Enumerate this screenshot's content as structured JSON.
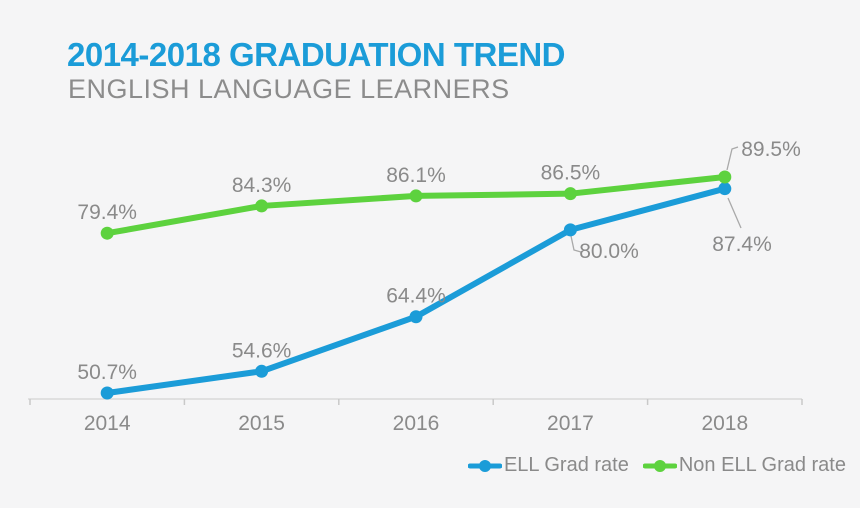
{
  "header": {
    "title": "2014-2018 GRADUATION TREND",
    "subtitle": "ENGLISH LANGUAGE LEARNERS"
  },
  "colors": {
    "background": "#f5f5f6",
    "title_blue": "#1b9cd8",
    "subtitle_gray": "#8c8c8c",
    "label_gray": "#8a8a8a",
    "axis_gray": "#d9d9d9",
    "tick_gray": "#c9c9c9",
    "leader_gray": "#a9a9a9"
  },
  "chart_data": {
    "type": "line",
    "title": "2014-2018 GRADUATION TREND",
    "subtitle": "ENGLISH LANGUAGE LEARNERS",
    "categories": [
      "2014",
      "2015",
      "2016",
      "2017",
      "2018"
    ],
    "series": [
      {
        "name": "ELL Grad rate",
        "color": "#1b9cd8",
        "values": [
          50.7,
          54.6,
          64.4,
          80.0,
          87.4
        ],
        "labels": [
          "50.7%",
          "54.6%",
          "64.4%",
          "80.0%",
          "87.4%"
        ]
      },
      {
        "name": "Non ELL Grad rate",
        "color": "#5dd23e",
        "values": [
          79.4,
          84.3,
          86.1,
          86.5,
          89.5
        ],
        "labels": [
          "79.4%",
          "84.3%",
          "86.1%",
          "86.5%",
          "89.5%"
        ]
      }
    ],
    "xlabel": "",
    "ylabel": "",
    "ylim": [
      49,
      95
    ],
    "grid": false,
    "y_axis_visible": false,
    "data_labels": true,
    "legend_position": "bottom-right"
  },
  "legend": {
    "items": [
      {
        "label": "ELL Grad rate"
      },
      {
        "label": "Non ELL Grad rate"
      }
    ]
  }
}
